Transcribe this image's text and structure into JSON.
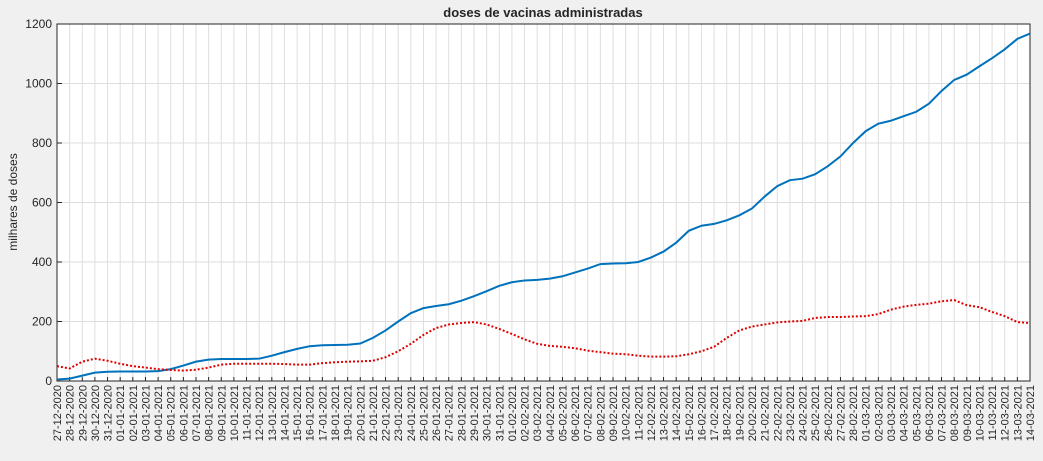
{
  "chart_data": {
    "type": "line",
    "title": "doses de vacinas administradas",
    "ylabel": "milhares de doses",
    "categories": [
      "27-12-2020",
      "28-12-2020",
      "29-12-2020",
      "30-12-2020",
      "31-12-2020",
      "01-01-2021",
      "02-01-2021",
      "03-01-2021",
      "04-01-2021",
      "05-01-2021",
      "06-01-2021",
      "07-01-2021",
      "08-01-2021",
      "09-01-2021",
      "10-01-2021",
      "11-01-2021",
      "12-01-2021",
      "13-01-2021",
      "14-01-2021",
      "15-01-2021",
      "16-01-2021",
      "17-01-2021",
      "18-01-2021",
      "19-01-2021",
      "20-01-2021",
      "21-01-2021",
      "22-01-2021",
      "23-01-2021",
      "24-01-2021",
      "25-01-2021",
      "26-01-2021",
      "27-01-2021",
      "28-01-2021",
      "29-01-2021",
      "30-01-2021",
      "31-01-2021",
      "01-02-2021",
      "02-02-2021",
      "03-02-2021",
      "04-02-2021",
      "05-02-2021",
      "06-02-2021",
      "07-02-2021",
      "08-02-2021",
      "09-02-2021",
      "10-02-2021",
      "11-02-2021",
      "12-02-2021",
      "13-02-2021",
      "14-02-2021",
      "15-02-2021",
      "16-02-2021",
      "17-02-2021",
      "18-02-2021",
      "19-02-2021",
      "20-02-2021",
      "21-02-2021",
      "22-02-2021",
      "23-02-2021",
      "24-02-2021",
      "25-02-2021",
      "26-02-2021",
      "27-02-2021",
      "28-02-2021",
      "01-03-2021",
      "02-03-2021",
      "03-03-2021",
      "04-03-2021",
      "05-03-2021",
      "06-03-2021",
      "07-03-2021",
      "08-03-2021",
      "09-03-2021",
      "10-03-2021",
      "11-03-2021",
      "12-03-2021",
      "13-03-2021",
      "14-03-2021"
    ],
    "series": [
      {
        "color": "#0072bd",
        "dash": "solid",
        "values": [
          5,
          8,
          18,
          28,
          31,
          32,
          32,
          32,
          33,
          40,
          52,
          65,
          72,
          74,
          74,
          74,
          75,
          85,
          97,
          108,
          117,
          120,
          121,
          122,
          126,
          145,
          170,
          200,
          228,
          245,
          252,
          258,
          270,
          285,
          302,
          320,
          332,
          338,
          340,
          344,
          352,
          365,
          378,
          393,
          395,
          396,
          400,
          415,
          435,
          465,
          505,
          522,
          528,
          540,
          557,
          580,
          620,
          655,
          675,
          680,
          695,
          722,
          755,
          800,
          840,
          865,
          875,
          890,
          905,
          932,
          975,
          1012,
          1030,
          1058,
          1085,
          1115,
          1150,
          1168
        ]
      },
      {
        "color": "#e00000",
        "dash": "dotted",
        "values": [
          50,
          42,
          65,
          75,
          68,
          58,
          50,
          45,
          40,
          37,
          35,
          38,
          45,
          55,
          58,
          58,
          58,
          58,
          57,
          55,
          55,
          60,
          63,
          65,
          66,
          68,
          80,
          100,
          125,
          155,
          178,
          190,
          195,
          198,
          190,
          175,
          158,
          140,
          125,
          118,
          115,
          110,
          102,
          97,
          92,
          90,
          85,
          82,
          82,
          83,
          90,
          100,
          115,
          145,
          170,
          183,
          190,
          197,
          200,
          202,
          212,
          215,
          215,
          217,
          218,
          225,
          240,
          250,
          256,
          260,
          268,
          272,
          255,
          248,
          232,
          218,
          198,
          195
        ]
      }
    ],
    "ylim": [
      0,
      1200
    ],
    "yticks": [
      0,
      200,
      400,
      600,
      800,
      1000,
      1200
    ],
    "grid": true
  }
}
